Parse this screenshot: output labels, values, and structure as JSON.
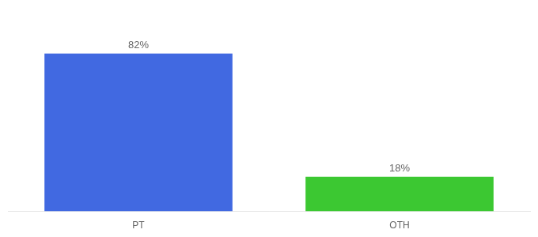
{
  "chart_data": {
    "type": "bar",
    "categories": [
      "PT",
      "OTH"
    ],
    "values": [
      82,
      18
    ],
    "value_labels": [
      "82%",
      "18%"
    ],
    "colors": [
      "#4169e1",
      "#3cc832"
    ],
    "ylim": [
      0,
      100
    ],
    "grid": false,
    "data_labels": true,
    "tick_labels": "x"
  }
}
